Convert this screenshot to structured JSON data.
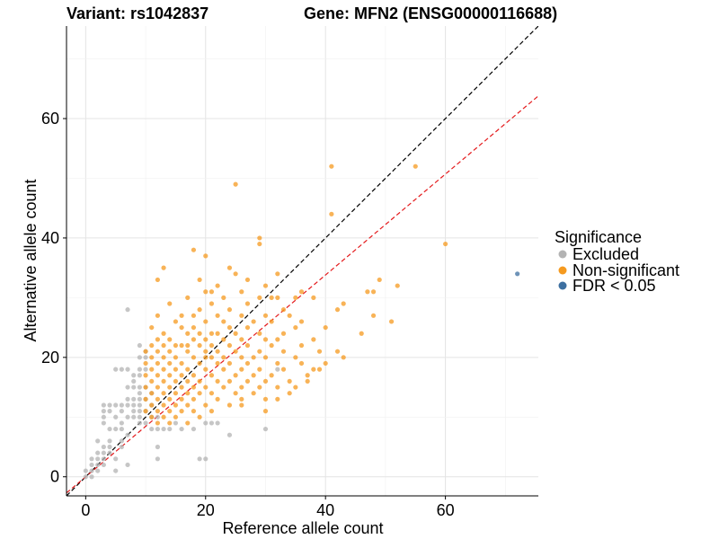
{
  "chart_data": {
    "type": "scatter",
    "title_left": "Variant: rs1042837",
    "title_right": "Gene: MFN2 (ENSG00000116688)",
    "xlabel": "Reference allele count",
    "ylabel": "Alternative allele count",
    "xlim": [
      -3.2,
      75.5
    ],
    "ylim": [
      -3.2,
      75.5
    ],
    "xticks": [
      0,
      20,
      40,
      60
    ],
    "yticks": [
      0,
      20,
      40,
      60
    ],
    "grid": true,
    "legend": {
      "title": "Significance",
      "position": "right",
      "entries": [
        {
          "label": "Excluded",
          "color": "#b3b3b3"
        },
        {
          "label": "Non-significant",
          "color": "#f59a1f"
        },
        {
          "label": "FDR < 0.05",
          "color": "#3d6fa0"
        }
      ]
    },
    "reference_lines": [
      {
        "name": "identity",
        "slope": 1.0,
        "intercept": 0,
        "color": "#000000",
        "dash": "dashed"
      },
      {
        "name": "fit",
        "slope": 0.845,
        "intercept": 0,
        "color": "#e41a1c",
        "dash": "dashed"
      }
    ],
    "series": [
      {
        "name": "Excluded",
        "color": "#b3b3b3",
        "points": [
          [
            0,
            0
          ],
          [
            0,
            1
          ],
          [
            1,
            0
          ],
          [
            1,
            1
          ],
          [
            1,
            2
          ],
          [
            1,
            3
          ],
          [
            2,
            1
          ],
          [
            2,
            2
          ],
          [
            2,
            3
          ],
          [
            2,
            4
          ],
          [
            3,
            2
          ],
          [
            3,
            3
          ],
          [
            3,
            4
          ],
          [
            3,
            5
          ],
          [
            4,
            4
          ],
          [
            4,
            5
          ],
          [
            4,
            6
          ],
          [
            5,
            1
          ],
          [
            3,
            9
          ],
          [
            3,
            10
          ],
          [
            3,
            11
          ],
          [
            3,
            12
          ],
          [
            4,
            8
          ],
          [
            4,
            11
          ],
          [
            5,
            8
          ],
          [
            5,
            10
          ],
          [
            5,
            12
          ],
          [
            6,
            5
          ],
          [
            6,
            6
          ],
          [
            6,
            8
          ],
          [
            6,
            9
          ],
          [
            6,
            11
          ],
          [
            6,
            12
          ],
          [
            7,
            7
          ],
          [
            7,
            10
          ],
          [
            7,
            12
          ],
          [
            7,
            13
          ],
          [
            7,
            15
          ],
          [
            7,
            18
          ],
          [
            7,
            28
          ],
          [
            8,
            10
          ],
          [
            8,
            11
          ],
          [
            8,
            12
          ],
          [
            8,
            13
          ],
          [
            8,
            15
          ],
          [
            8,
            16
          ],
          [
            9,
            9
          ],
          [
            9,
            10
          ],
          [
            9,
            11
          ],
          [
            9,
            12
          ],
          [
            9,
            13
          ],
          [
            9,
            14
          ],
          [
            9,
            15
          ],
          [
            9,
            17
          ],
          [
            9,
            18
          ],
          [
            9,
            20
          ],
          [
            10,
            9
          ],
          [
            10,
            11
          ],
          [
            10,
            13
          ],
          [
            10,
            15
          ],
          [
            10,
            18
          ],
          [
            10,
            20
          ],
          [
            10,
            21
          ],
          [
            11,
            8
          ],
          [
            11,
            10
          ],
          [
            11,
            12
          ],
          [
            11,
            14
          ],
          [
            12,
            3
          ],
          [
            12,
            5
          ],
          [
            12,
            8
          ],
          [
            12,
            10
          ],
          [
            13,
            8
          ],
          [
            14,
            8
          ],
          [
            15,
            9
          ],
          [
            16,
            8
          ],
          [
            18,
            8
          ],
          [
            19,
            3
          ],
          [
            20,
            3
          ],
          [
            20,
            9
          ],
          [
            21,
            9
          ],
          [
            22,
            9
          ],
          [
            24,
            7
          ],
          [
            30,
            8
          ],
          [
            32,
            18
          ],
          [
            6,
            18
          ],
          [
            5,
            18
          ],
          [
            8,
            17
          ],
          [
            9,
            22
          ],
          [
            4,
            12
          ],
          [
            5,
            3
          ],
          [
            2,
            6
          ],
          [
            7,
            2
          ]
        ]
      },
      {
        "name": "Non-significant",
        "color": "#f59a1f",
        "points": [
          [
            25,
            49
          ],
          [
            41,
            52
          ],
          [
            55,
            52
          ],
          [
            41,
            44
          ],
          [
            60,
            39
          ],
          [
            29,
            40
          ],
          [
            29,
            39
          ],
          [
            18,
            38
          ],
          [
            20,
            37
          ],
          [
            13,
            35
          ],
          [
            24,
            35
          ],
          [
            32,
            34
          ],
          [
            25,
            34
          ],
          [
            19,
            33
          ],
          [
            27,
            33
          ],
          [
            12,
            33
          ],
          [
            22,
            32
          ],
          [
            30,
            32
          ],
          [
            36,
            31
          ],
          [
            49,
            33
          ],
          [
            52,
            32
          ],
          [
            47,
            31
          ],
          [
            48,
            31
          ],
          [
            21,
            31
          ],
          [
            26,
            31
          ],
          [
            17,
            30
          ],
          [
            23,
            30
          ],
          [
            29,
            30
          ],
          [
            31,
            30
          ],
          [
            32,
            30
          ],
          [
            35,
            30
          ],
          [
            38,
            30
          ],
          [
            43,
            29
          ],
          [
            14,
            29
          ],
          [
            21,
            29
          ],
          [
            27,
            29
          ],
          [
            19,
            28
          ],
          [
            24,
            28
          ],
          [
            33,
            28
          ],
          [
            42,
            28
          ],
          [
            12,
            27
          ],
          [
            18,
            27
          ],
          [
            22,
            27
          ],
          [
            26,
            27
          ],
          [
            30,
            27
          ],
          [
            34,
            27
          ],
          [
            48,
            27
          ],
          [
            15,
            26
          ],
          [
            20,
            26
          ],
          [
            23,
            26
          ],
          [
            28,
            26
          ],
          [
            31,
            26
          ],
          [
            36,
            26
          ],
          [
            51,
            26
          ],
          [
            11,
            25
          ],
          [
            16,
            25
          ],
          [
            18,
            25
          ],
          [
            24,
            25
          ],
          [
            27,
            25
          ],
          [
            35,
            25
          ],
          [
            40,
            25
          ],
          [
            13,
            24
          ],
          [
            17,
            24
          ],
          [
            19,
            24
          ],
          [
            21,
            24
          ],
          [
            22,
            24
          ],
          [
            25,
            24
          ],
          [
            29,
            24
          ],
          [
            33,
            24
          ],
          [
            46,
            24
          ],
          [
            12,
            23
          ],
          [
            14,
            23
          ],
          [
            18,
            23
          ],
          [
            20,
            23
          ],
          [
            23,
            23
          ],
          [
            26,
            23
          ],
          [
            30,
            23
          ],
          [
            32,
            23
          ],
          [
            38,
            23
          ],
          [
            11,
            22
          ],
          [
            13,
            22
          ],
          [
            15,
            22
          ],
          [
            16,
            22
          ],
          [
            19,
            22
          ],
          [
            21,
            22
          ],
          [
            24,
            22
          ],
          [
            27,
            22
          ],
          [
            31,
            22
          ],
          [
            36,
            22
          ],
          [
            10,
            21
          ],
          [
            12,
            21
          ],
          [
            14,
            21
          ],
          [
            17,
            21
          ],
          [
            20,
            21
          ],
          [
            22,
            21
          ],
          [
            25,
            21
          ],
          [
            29,
            21
          ],
          [
            33,
            21
          ],
          [
            39,
            21
          ],
          [
            11,
            20
          ],
          [
            13,
            20
          ],
          [
            15,
            20
          ],
          [
            18,
            20
          ],
          [
            20,
            20
          ],
          [
            21,
            20
          ],
          [
            23,
            20
          ],
          [
            26,
            20
          ],
          [
            28,
            20
          ],
          [
            30,
            20
          ],
          [
            35,
            20
          ],
          [
            43,
            20
          ],
          [
            10,
            19
          ],
          [
            12,
            19
          ],
          [
            14,
            19
          ],
          [
            16,
            19
          ],
          [
            19,
            19
          ],
          [
            22,
            19
          ],
          [
            24,
            19
          ],
          [
            27,
            19
          ],
          [
            32,
            19
          ],
          [
            36,
            19
          ],
          [
            11,
            18
          ],
          [
            13,
            18
          ],
          [
            15,
            18
          ],
          [
            17,
            18
          ],
          [
            20,
            18
          ],
          [
            23,
            18
          ],
          [
            26,
            18
          ],
          [
            29,
            18
          ],
          [
            33,
            18
          ],
          [
            38,
            18
          ],
          [
            10,
            17
          ],
          [
            12,
            17
          ],
          [
            14,
            17
          ],
          [
            16,
            17
          ],
          [
            18,
            17
          ],
          [
            21,
            17
          ],
          [
            25,
            17
          ],
          [
            28,
            17
          ],
          [
            31,
            17
          ],
          [
            37,
            17
          ],
          [
            11,
            16
          ],
          [
            13,
            16
          ],
          [
            15,
            16
          ],
          [
            17,
            16
          ],
          [
            19,
            16
          ],
          [
            22,
            16
          ],
          [
            24,
            16
          ],
          [
            27,
            16
          ],
          [
            30,
            16
          ],
          [
            34,
            16
          ],
          [
            10,
            15
          ],
          [
            12,
            15
          ],
          [
            14,
            15
          ],
          [
            16,
            15
          ],
          [
            18,
            15
          ],
          [
            20,
            15
          ],
          [
            23,
            15
          ],
          [
            26,
            15
          ],
          [
            29,
            15
          ],
          [
            32,
            15
          ],
          [
            11,
            14
          ],
          [
            13,
            14
          ],
          [
            15,
            14
          ],
          [
            17,
            14
          ],
          [
            19,
            14
          ],
          [
            21,
            14
          ],
          [
            25,
            14
          ],
          [
            28,
            14
          ],
          [
            10,
            13
          ],
          [
            12,
            13
          ],
          [
            14,
            13
          ],
          [
            16,
            13
          ],
          [
            18,
            13
          ],
          [
            22,
            13
          ],
          [
            26,
            13
          ],
          [
            30,
            13
          ],
          [
            11,
            12
          ],
          [
            13,
            12
          ],
          [
            15,
            12
          ],
          [
            17,
            12
          ],
          [
            20,
            12
          ],
          [
            24,
            12
          ],
          [
            10,
            11
          ],
          [
            12,
            11
          ],
          [
            14,
            11
          ],
          [
            16,
            11
          ],
          [
            18,
            11
          ],
          [
            21,
            11
          ],
          [
            11,
            10
          ],
          [
            13,
            10
          ],
          [
            15,
            10
          ],
          [
            19,
            10
          ],
          [
            12,
            9
          ],
          [
            14,
            9
          ],
          [
            17,
            9
          ],
          [
            30,
            11
          ],
          [
            26,
            12
          ],
          [
            32,
            13
          ],
          [
            34,
            14
          ],
          [
            35,
            15
          ],
          [
            37,
            16
          ],
          [
            39,
            18
          ],
          [
            40,
            19
          ],
          [
            42,
            21
          ],
          [
            20,
            31
          ],
          [
            17,
            22
          ],
          [
            16,
            27
          ]
        ]
      },
      {
        "name": "FDR < 0.05",
        "color": "#3d6fa0",
        "points": [
          [
            72,
            34
          ]
        ]
      }
    ]
  }
}
